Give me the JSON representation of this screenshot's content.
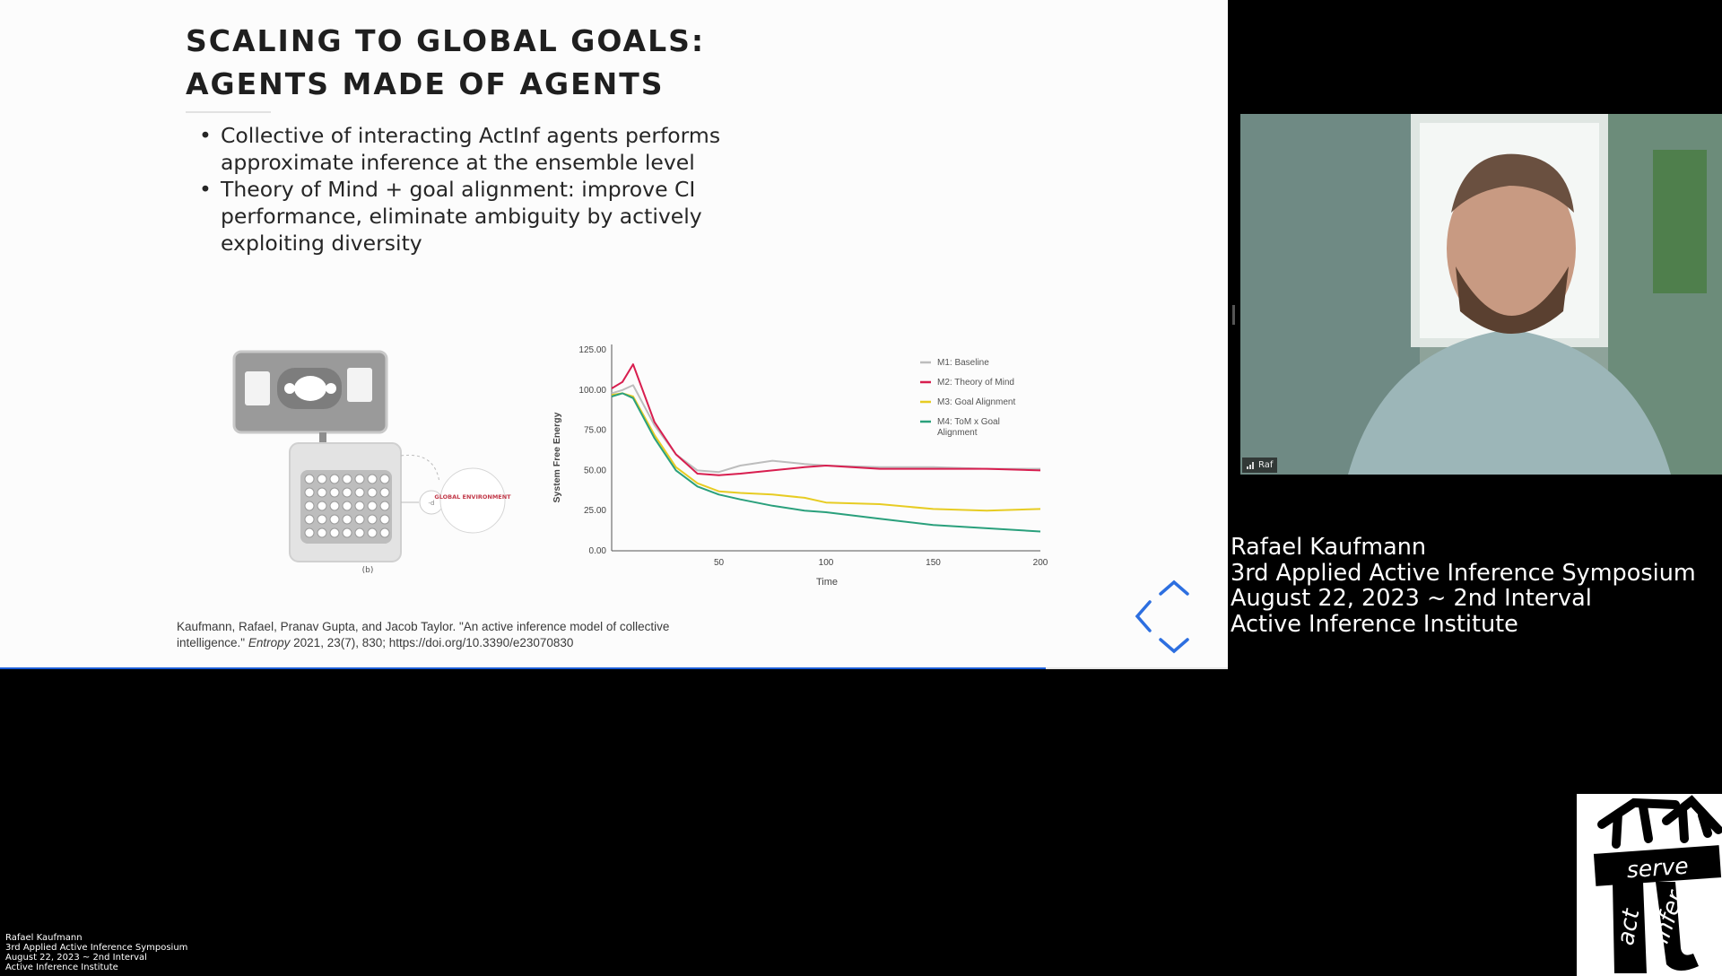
{
  "slide": {
    "title_line1": "SCALING TO GLOBAL GOALS:",
    "title_line2": "AGENTS MADE OF AGENTS",
    "bullets": [
      {
        "line1": "Collective of interacting ActInf agents performs",
        "line2": "approximate inference at the ensemble level"
      },
      {
        "line1": "Theory of Mind + goal alignment: improve CI",
        "line2": "performance, eliminate ambiguity by actively",
        "line3": "exploiting diversity"
      }
    ],
    "diagram": {
      "caption": "(b)",
      "node_label": "GLOBAL ENVIRONMENT",
      "small_label": "-d"
    },
    "citation": {
      "line1": "Kaufmann, Rafael, Pranav Gupta, and Jacob Taylor. \"An active inference model of collective",
      "line2_pre": "intelligence.\"",
      "journal": "Entropy",
      "line2_post": "2021, 23(7), 830; https://doi.org/10.3390/e23070830"
    },
    "progress": 0.852
  },
  "chart_data": {
    "type": "line",
    "xlabel": "Time",
    "ylabel": "System Free Energy",
    "xlim": [
      0,
      200
    ],
    "ylim": [
      0,
      125
    ],
    "xticks": [
      50,
      100,
      150,
      200
    ],
    "yticks": [
      0,
      25,
      50,
      75,
      100,
      125
    ],
    "ytick_labels": [
      "0.00",
      "25.00",
      "50.00",
      "75.00",
      "100.00",
      "125.00"
    ],
    "legend_position": "top-right",
    "grid": false,
    "series": [
      {
        "name": "M1: Baseline",
        "color": "#bdbdbd",
        "x": [
          0,
          5,
          10,
          20,
          30,
          40,
          50,
          60,
          75,
          90,
          100,
          125,
          150,
          175,
          200
        ],
        "y": [
          98,
          100,
          103,
          78,
          60,
          50,
          49,
          53,
          56,
          54,
          53,
          52,
          52,
          51,
          51
        ]
      },
      {
        "name": "M2: Theory of Mind",
        "color": "#d81e4f",
        "x": [
          0,
          5,
          10,
          20,
          30,
          40,
          50,
          60,
          75,
          90,
          100,
          125,
          150,
          175,
          200
        ],
        "y": [
          101,
          105,
          116,
          80,
          60,
          48,
          47,
          48,
          50,
          52,
          53,
          51,
          51,
          51,
          50
        ]
      },
      {
        "name": "M3: Goal Alignment",
        "color": "#e7cc23",
        "x": [
          0,
          5,
          10,
          20,
          30,
          40,
          50,
          60,
          75,
          90,
          100,
          125,
          150,
          175,
          200
        ],
        "y": [
          97,
          98,
          96,
          72,
          52,
          42,
          37,
          36,
          35,
          33,
          30,
          29,
          26,
          25,
          26
        ]
      },
      {
        "name": "M4: ToM x Goal Alignment",
        "color": "#2aa07c",
        "x": [
          0,
          5,
          10,
          20,
          30,
          40,
          50,
          60,
          75,
          90,
          100,
          125,
          150,
          175,
          200
        ],
        "y": [
          96,
          98,
          95,
          70,
          50,
          40,
          35,
          32,
          28,
          25,
          24,
          20,
          16,
          14,
          12
        ]
      }
    ]
  },
  "video": {
    "label": "Raf"
  },
  "speaker_info": {
    "name": "Rafael Kaufmann",
    "event": "3rd Applied Active Inference Symposium",
    "date": "August 22, 2023 ~ 2nd Interval",
    "org": "Active Inference Institute"
  },
  "logo": {
    "word_top": "serve",
    "word_left": "act",
    "word_right": "infer"
  },
  "colors": {
    "progress": "#1a5cd6",
    "nav_arrow": "#2d6fe0"
  }
}
